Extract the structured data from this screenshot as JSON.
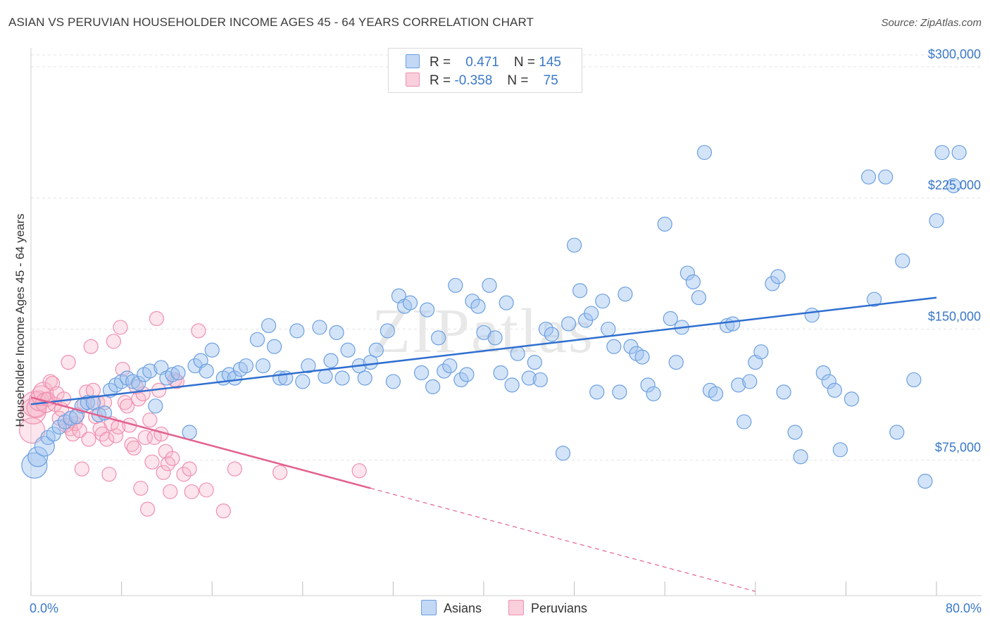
{
  "title": "ASIAN VS PERUVIAN HOUSEHOLDER INCOME AGES 45 - 64 YEARS CORRELATION CHART",
  "source": "Source: ZipAtlas.com",
  "legend": {
    "rows": [
      {
        "r_label": "R =",
        "r_value": "0.471",
        "n_label": "N =",
        "n_value": "145"
      },
      {
        "r_label": "R =",
        "r_value": "-0.358",
        "n_label": "N =",
        "n_value": "75"
      }
    ]
  },
  "bottom_legend": {
    "asians": "Asians",
    "peruvians": "Peruvians"
  },
  "watermark": "ZIPatlas",
  "colors": {
    "asian_fill": "rgba(160,196,240,0.45)",
    "asian_stroke": "#6b9fe0",
    "asian_line": "#2f6fd0",
    "peru_fill": "rgba(246,180,200,0.35)",
    "peru_stroke": "#ef8fb0",
    "peru_line": "#e2628f",
    "grid": "#e3e3e3",
    "axis_text": "#3a78c9"
  },
  "chart_data": {
    "type": "scatter",
    "title": "ASIAN VS PERUVIAN HOUSEHOLDER INCOME AGES 45 - 64 YEARS CORRELATION CHART",
    "xlabel": "",
    "ylabel": "Householder Income Ages 45 - 64 years",
    "xlim": [
      0,
      80
    ],
    "ylim": [
      0,
      310000
    ],
    "x_tick_labels": [
      "0.0%",
      "80.0%"
    ],
    "y_ticks": [
      75000,
      150000,
      225000,
      300000
    ],
    "y_tick_labels": [
      "$75,000",
      "$150,000",
      "$225,000",
      "$300,000"
    ],
    "grid": true,
    "legend_position": "top-center",
    "series": [
      {
        "name": "Asians",
        "r": 0.471,
        "n": 145,
        "trend": {
          "x": [
            0,
            80
          ],
          "y": [
            107000,
            168000
          ]
        },
        "points": [
          [
            0.3,
            72000
          ],
          [
            0.6,
            77000
          ],
          [
            1.2,
            83000
          ],
          [
            1.5,
            88000
          ],
          [
            2.0,
            90000
          ],
          [
            2.5,
            94000
          ],
          [
            3.0,
            97000
          ],
          [
            3.5,
            99000
          ],
          [
            4.0,
            100000
          ],
          [
            4.5,
            106000
          ],
          [
            5.0,
            108000
          ],
          [
            5.5,
            108000
          ],
          [
            6.0,
            101000
          ],
          [
            6.5,
            102000
          ],
          [
            7.0,
            115000
          ],
          [
            7.5,
            118000
          ],
          [
            8.0,
            120000
          ],
          [
            8.5,
            122000
          ],
          [
            9.0,
            120000
          ],
          [
            9.5,
            119000
          ],
          [
            10.0,
            124000
          ],
          [
            10.5,
            126000
          ],
          [
            11.0,
            106000
          ],
          [
            11.5,
            128000
          ],
          [
            12.0,
            122000
          ],
          [
            12.5,
            124000
          ],
          [
            13.0,
            125000
          ],
          [
            14.0,
            91000
          ],
          [
            14.5,
            129000
          ],
          [
            15.0,
            132000
          ],
          [
            15.5,
            126000
          ],
          [
            16.0,
            138000
          ],
          [
            17.0,
            122000
          ],
          [
            17.5,
            124000
          ],
          [
            18.0,
            122000
          ],
          [
            18.5,
            127000
          ],
          [
            19.0,
            129000
          ],
          [
            20.0,
            144000
          ],
          [
            20.5,
            129000
          ],
          [
            21.0,
            152000
          ],
          [
            21.5,
            140000
          ],
          [
            22.0,
            122000
          ],
          [
            22.5,
            122000
          ],
          [
            23.5,
            149000
          ],
          [
            24.0,
            120000
          ],
          [
            24.5,
            129000
          ],
          [
            25.5,
            151000
          ],
          [
            26.0,
            123000
          ],
          [
            26.5,
            132000
          ],
          [
            27.0,
            148000
          ],
          [
            27.5,
            122000
          ],
          [
            28.0,
            138000
          ],
          [
            29.0,
            129000
          ],
          [
            29.5,
            122000
          ],
          [
            30.0,
            131000
          ],
          [
            30.5,
            138000
          ],
          [
            31.5,
            149000
          ],
          [
            32.0,
            120000
          ],
          [
            32.5,
            169000
          ],
          [
            33.0,
            163000
          ],
          [
            33.5,
            165000
          ],
          [
            34.5,
            125000
          ],
          [
            35.0,
            161000
          ],
          [
            35.5,
            117000
          ],
          [
            36.0,
            145000
          ],
          [
            36.5,
            126000
          ],
          [
            37.0,
            129000
          ],
          [
            37.5,
            175000
          ],
          [
            38.0,
            121000
          ],
          [
            38.5,
            124000
          ],
          [
            39.0,
            166000
          ],
          [
            39.5,
            163000
          ],
          [
            40.0,
            148000
          ],
          [
            40.5,
            175000
          ],
          [
            41.0,
            145000
          ],
          [
            41.5,
            125000
          ],
          [
            42.0,
            165000
          ],
          [
            42.5,
            118000
          ],
          [
            43.0,
            136000
          ],
          [
            44.0,
            122000
          ],
          [
            44.5,
            131000
          ],
          [
            45.0,
            121000
          ],
          [
            45.5,
            150000
          ],
          [
            46.0,
            147000
          ],
          [
            47.0,
            79000
          ],
          [
            47.5,
            153000
          ],
          [
            48.0,
            198000
          ],
          [
            48.5,
            172000
          ],
          [
            49.0,
            155000
          ],
          [
            49.5,
            159000
          ],
          [
            50.0,
            114000
          ],
          [
            50.5,
            166000
          ],
          [
            51.0,
            150000
          ],
          [
            51.5,
            140000
          ],
          [
            52.0,
            114000
          ],
          [
            52.5,
            170000
          ],
          [
            53.0,
            140000
          ],
          [
            53.5,
            136000
          ],
          [
            54.0,
            134000
          ],
          [
            54.5,
            118000
          ],
          [
            55.0,
            113000
          ],
          [
            56.0,
            210000
          ],
          [
            56.5,
            156000
          ],
          [
            57.0,
            131000
          ],
          [
            57.5,
            151000
          ],
          [
            58.0,
            182000
          ],
          [
            58.5,
            177000
          ],
          [
            59.0,
            168000
          ],
          [
            59.5,
            251000
          ],
          [
            60.0,
            115000
          ],
          [
            60.5,
            113000
          ],
          [
            61.5,
            152000
          ],
          [
            62.0,
            153000
          ],
          [
            62.5,
            118000
          ],
          [
            63.0,
            97000
          ],
          [
            63.5,
            120000
          ],
          [
            64.0,
            131000
          ],
          [
            64.5,
            137000
          ],
          [
            65.5,
            176000
          ],
          [
            66.0,
            180000
          ],
          [
            66.5,
            114000
          ],
          [
            67.5,
            91000
          ],
          [
            68.0,
            77000
          ],
          [
            69.0,
            158000
          ],
          [
            70.0,
            125000
          ],
          [
            70.5,
            120000
          ],
          [
            71.0,
            115000
          ],
          [
            71.5,
            81000
          ],
          [
            72.5,
            110000
          ],
          [
            74.0,
            237000
          ],
          [
            74.5,
            167000
          ],
          [
            75.5,
            237000
          ],
          [
            76.5,
            91000
          ],
          [
            77.0,
            189000
          ],
          [
            78.0,
            121000
          ],
          [
            79.0,
            63000
          ],
          [
            80.0,
            212000
          ],
          [
            80.5,
            251000
          ],
          [
            81.5,
            232000
          ],
          [
            82.0,
            251000
          ]
        ]
      },
      {
        "name": "Peruvians",
        "r": -0.358,
        "n": 75,
        "trend": {
          "x": [
            0,
            30
          ],
          "y": [
            111000,
            59000
          ]
        },
        "trend_dashed": {
          "x": [
            30,
            64
          ],
          "y": [
            59000,
            0
          ]
        },
        "points": [
          [
            0.1,
            92000
          ],
          [
            0.2,
            103000
          ],
          [
            0.3,
            107000
          ],
          [
            0.5,
            105000
          ],
          [
            0.7,
            109000
          ],
          [
            0.9,
            112000
          ],
          [
            1.1,
            114000
          ],
          [
            1.3,
            108000
          ],
          [
            1.5,
            110000
          ],
          [
            1.7,
            120000
          ],
          [
            1.9,
            119000
          ],
          [
            2.1,
            107000
          ],
          [
            2.3,
            113000
          ],
          [
            2.5,
            99000
          ],
          [
            2.7,
            104000
          ],
          [
            2.9,
            110000
          ],
          [
            3.1,
            95000
          ],
          [
            3.3,
            131000
          ],
          [
            3.5,
            93000
          ],
          [
            3.7,
            90000
          ],
          [
            3.9,
            96000
          ],
          [
            4.1,
            101000
          ],
          [
            4.3,
            92000
          ],
          [
            4.5,
            70000
          ],
          [
            4.7,
            107000
          ],
          [
            4.9,
            114000
          ],
          [
            5.1,
            87000
          ],
          [
            5.3,
            140000
          ],
          [
            5.5,
            115000
          ],
          [
            5.7,
            100000
          ],
          [
            5.9,
            108000
          ],
          [
            6.1,
            93000
          ],
          [
            6.3,
            90000
          ],
          [
            6.5,
            108000
          ],
          [
            6.7,
            87000
          ],
          [
            6.9,
            67000
          ],
          [
            7.1,
            96000
          ],
          [
            7.3,
            143000
          ],
          [
            7.5,
            89000
          ],
          [
            7.7,
            94000
          ],
          [
            7.9,
            151000
          ],
          [
            8.1,
            127000
          ],
          [
            8.3,
            108000
          ],
          [
            8.5,
            106000
          ],
          [
            8.7,
            95000
          ],
          [
            8.9,
            84000
          ],
          [
            9.1,
            82000
          ],
          [
            9.3,
            117000
          ],
          [
            9.5,
            110000
          ],
          [
            9.7,
            59000
          ],
          [
            9.9,
            113000
          ],
          [
            10.1,
            88000
          ],
          [
            10.3,
            47000
          ],
          [
            10.5,
            98000
          ],
          [
            10.7,
            74000
          ],
          [
            10.9,
            88000
          ],
          [
            11.1,
            156000
          ],
          [
            11.3,
            115000
          ],
          [
            11.5,
            90000
          ],
          [
            11.7,
            68000
          ],
          [
            11.9,
            80000
          ],
          [
            12.1,
            73000
          ],
          [
            12.3,
            57000
          ],
          [
            12.5,
            76000
          ],
          [
            12.7,
            121000
          ],
          [
            12.9,
            120000
          ],
          [
            13.5,
            67000
          ],
          [
            14.0,
            70000
          ],
          [
            14.2,
            57000
          ],
          [
            14.8,
            149000
          ],
          [
            15.5,
            58000
          ],
          [
            17.0,
            46000
          ],
          [
            18.0,
            70000
          ],
          [
            22.0,
            68000
          ],
          [
            29.0,
            69000
          ]
        ]
      }
    ]
  }
}
